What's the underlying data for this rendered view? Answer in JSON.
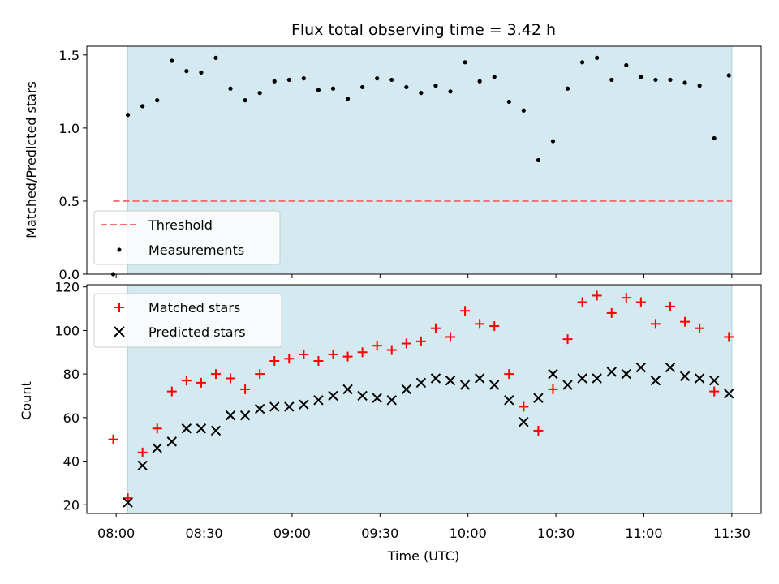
{
  "chart_data": [
    {
      "type": "scatter",
      "panel": "top",
      "title": "Flux total observing time = 3.42 h",
      "xlabel": "",
      "ylabel": "Matched/Predicted stars",
      "ylim": [
        0,
        1.56
      ],
      "yticks": [
        0.0,
        0.5,
        1.0,
        1.5
      ],
      "ytick_labels": [
        "0.0",
        "0.5",
        "1.0",
        "1.5"
      ],
      "xlim_min": [
        -10,
        220
      ],
      "shaded_span_min": [
        4,
        210
      ],
      "threshold": {
        "name": "Threshold",
        "value": 0.5,
        "x_range_min": [
          -1,
          210
        ]
      },
      "legend": {
        "placement": "lower-left",
        "entries": [
          "Threshold",
          "Measurements"
        ]
      },
      "series": [
        {
          "name": "Measurements",
          "x_min": [
            -1,
            4,
            9,
            14,
            19,
            24,
            29,
            34,
            39,
            44,
            49,
            54,
            59,
            64,
            69,
            74,
            79,
            84,
            89,
            94,
            99,
            104,
            109,
            114,
            119,
            124,
            129,
            134,
            139,
            144,
            149,
            154,
            159,
            164,
            169,
            174,
            179,
            184,
            189,
            194,
            199,
            204,
            209
          ],
          "values": [
            0.0,
            1.09,
            1.15,
            1.19,
            1.46,
            1.39,
            1.38,
            1.48,
            1.27,
            1.19,
            1.24,
            1.32,
            1.33,
            1.34,
            1.26,
            1.27,
            1.2,
            1.28,
            1.34,
            1.33,
            1.28,
            1.24,
            1.29,
            1.25,
            1.45,
            1.32,
            1.35,
            1.18,
            1.12,
            0.78,
            0.91,
            1.27,
            1.45,
            1.48,
            1.33,
            1.43,
            1.35,
            1.33,
            1.33,
            1.31,
            1.29,
            0.93,
            1.36
          ]
        }
      ]
    },
    {
      "type": "scatter",
      "panel": "bottom",
      "xlabel": "Time (UTC)",
      "ylabel": "Count",
      "ylim": [
        16,
        121
      ],
      "yticks": [
        20,
        40,
        60,
        80,
        100,
        120
      ],
      "ytick_labels": [
        "20",
        "40",
        "60",
        "80",
        "100",
        "120"
      ],
      "xlim_min": [
        -10,
        220
      ],
      "xticks_min": [
        0,
        30,
        60,
        90,
        120,
        150,
        180,
        210
      ],
      "xtick_labels": [
        "08:00",
        "08:30",
        "09:00",
        "09:30",
        "10:00",
        "10:30",
        "11:00",
        "11:30"
      ],
      "shaded_span_min": [
        4,
        210
      ],
      "legend": {
        "placement": "upper-left",
        "entries": [
          "Matched stars",
          "Predicted stars"
        ]
      },
      "series": [
        {
          "name": "Matched stars",
          "x_min": [
            -1,
            4,
            9,
            14,
            19,
            24,
            29,
            34,
            39,
            44,
            49,
            54,
            59,
            64,
            69,
            74,
            79,
            84,
            89,
            94,
            99,
            104,
            109,
            114,
            119,
            124,
            129,
            134,
            139,
            144,
            149,
            154,
            159,
            164,
            169,
            174,
            179,
            184,
            189,
            194,
            199,
            204,
            209
          ],
          "values": [
            50,
            23,
            44,
            55,
            72,
            77,
            76,
            80,
            78,
            73,
            80,
            86,
            87,
            89,
            86,
            89,
            88,
            90,
            93,
            91,
            94,
            95,
            101,
            97,
            109,
            103,
            102,
            80,
            65,
            54,
            73,
            96,
            113,
            116,
            108,
            115,
            113,
            103,
            111,
            104,
            101,
            72,
            97
          ]
        },
        {
          "name": "Predicted stars",
          "x_min": [
            4,
            9,
            14,
            19,
            24,
            29,
            34,
            39,
            44,
            49,
            54,
            59,
            64,
            69,
            74,
            79,
            84,
            89,
            94,
            99,
            104,
            109,
            114,
            119,
            124,
            129,
            134,
            139,
            144,
            149,
            154,
            159,
            164,
            169,
            174,
            179,
            184,
            189,
            194,
            199,
            204,
            209
          ],
          "values": [
            21,
            38,
            46,
            49,
            55,
            55,
            54,
            61,
            61,
            64,
            65,
            65,
            66,
            68,
            70,
            73,
            70,
            69,
            68,
            73,
            76,
            78,
            77,
            75,
            78,
            75,
            68,
            58,
            69,
            80,
            75,
            78,
            78,
            81,
            80,
            83,
            77,
            83,
            79,
            78,
            77,
            71
          ]
        }
      ]
    }
  ],
  "colors": {
    "shade": "#d4eaf0",
    "shade_edge": "#a9d3de",
    "threshold": "#f07070",
    "measurement": "#000000",
    "matched": "#ff0000",
    "predicted": "#000000"
  }
}
